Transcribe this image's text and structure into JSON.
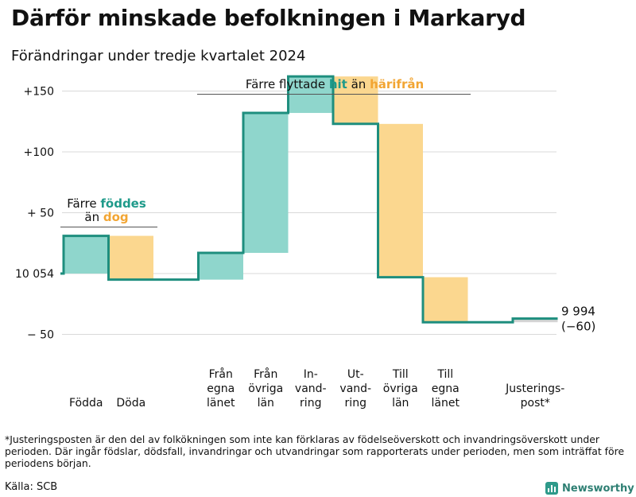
{
  "title": "Därför minskade befolkningen i Markaryd",
  "subtitle": "Förändringar under tredje kvartalet 2024",
  "chart_data": {
    "type": "waterfall",
    "start_value": 10054,
    "end_value": 9994,
    "end_label": "9 994",
    "end_change_label": "(−60)",
    "ylim": [
      -80,
      155
    ],
    "yticks": [
      {
        "value": 150,
        "label": "+150"
      },
      {
        "value": 100,
        "label": "+100"
      },
      {
        "value": 50,
        "label": "+ 50"
      },
      {
        "value": 0,
        "label": "10 054"
      },
      {
        "value": -50,
        "label": "− 50"
      }
    ],
    "grid": true,
    "steps": [
      {
        "label_lines": [
          "Födda"
        ],
        "change": 31
      },
      {
        "label_lines": [
          "Döda"
        ],
        "change": -36
      },
      {
        "label_lines": [],
        "change": 0
      },
      {
        "label_lines": [
          "Från",
          "egna",
          "länet"
        ],
        "change": 22
      },
      {
        "label_lines": [
          "Från",
          "övriga",
          "län"
        ],
        "change": 115
      },
      {
        "label_lines": [
          "In-",
          "vand-",
          "ring"
        ],
        "change": 30
      },
      {
        "label_lines": [
          "Ut-",
          "vand-",
          "ring"
        ],
        "change": -39
      },
      {
        "label_lines": [
          "Till",
          "övriga",
          "län"
        ],
        "change": -126
      },
      {
        "label_lines": [
          "Till",
          "egna",
          "länet"
        ],
        "change": -37
      },
      {
        "label_lines": [],
        "change": 0
      },
      {
        "label_lines": [
          "Justerings-",
          "post*"
        ],
        "change": 3
      }
    ],
    "annotations": [
      {
        "parts": [
          {
            "text": "Färre ",
            "style": "plain"
          },
          {
            "text": "föddes",
            "style": "in"
          }
        ],
        "parts2": [
          {
            "text": "än ",
            "style": "plain"
          },
          {
            "text": "dog",
            "style": "out"
          }
        ]
      },
      {
        "parts": [
          {
            "text": "Färre flyttade ",
            "style": "plain"
          },
          {
            "text": "hit",
            "style": "in"
          },
          {
            "text": " än ",
            "style": "plain"
          },
          {
            "text": "härifrån",
            "style": "out"
          }
        ],
        "parts2": []
      }
    ],
    "colors": {
      "increase": "#8fd6cc",
      "decrease": "#fbd78f",
      "adjustment": "#d4d4d4",
      "step_line": "#1e8e7e",
      "text_in": "#1e9a8a",
      "text_out": "#f2a533",
      "grid": "#d9d9d9"
    }
  },
  "footnote": "*Justeringsposten är den del av folkökningen som inte kan förklaras av födelseöverskott och invandringsöverskott under perioden. Där ingår födslar, dödsfall, invandringar och utvandringar som rapporterats under perioden, men som inträffat före periodens början.",
  "source": "Källa: SCB",
  "brand": "Newsworthy"
}
